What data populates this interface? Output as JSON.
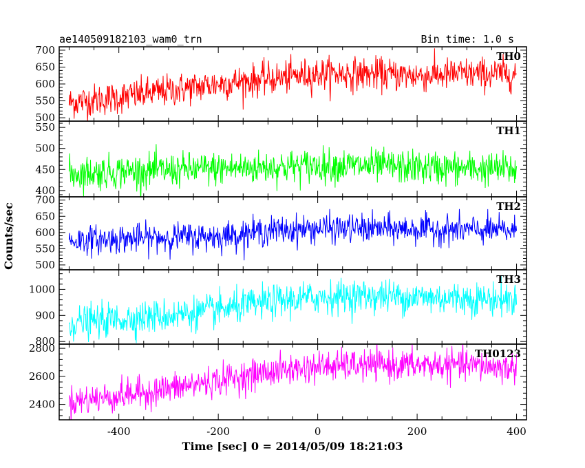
{
  "header": {
    "left": "ae140509182103_wam0_trn",
    "right": "Bin time: 1.0 s"
  },
  "colors": {
    "TH0": "#ff0000",
    "TH1": "#00ff00",
    "TH2": "#0000ff",
    "TH3": "#00ffff",
    "TH0123": "#ff00ff"
  },
  "chart_data": {
    "type": "line",
    "title": "ae140509182103_wam0_trn",
    "subtitle": "Bin time: 1.0 s",
    "xlabel": "Time [sec] 0 = 2014/05/09 18:21:03",
    "ylabel": "Counts/sec",
    "xlim": [
      -520,
      420
    ],
    "x_ticks": [
      -400,
      -200,
      0,
      200,
      400
    ],
    "x_range_data": [
      -500,
      400
    ],
    "bin_time_s": 1.0,
    "grid": false,
    "panels": [
      {
        "name": "TH0",
        "ylim": [
          490,
          710
        ],
        "y_ticks": [
          500,
          550,
          600,
          650,
          700
        ],
        "trend": {
          "x": [
            -500,
            -400,
            -300,
            -200,
            -100,
            0,
            100,
            200,
            300,
            400
          ],
          "y": [
            545,
            560,
            580,
            600,
            615,
            630,
            630,
            625,
            630,
            630
          ]
        },
        "noise_sd": 24
      },
      {
        "name": "TH1",
        "ylim": [
          385,
          565
        ],
        "y_ticks": [
          400,
          450,
          500,
          550
        ],
        "trend": {
          "x": [
            -500,
            -400,
            -300,
            -200,
            -100,
            0,
            100,
            200,
            300,
            400
          ],
          "y": [
            440,
            445,
            448,
            452,
            455,
            460,
            458,
            455,
            452,
            450
          ]
        },
        "noise_sd": 20
      },
      {
        "name": "TH2",
        "ylim": [
          485,
          710
        ],
        "y_ticks": [
          500,
          550,
          600,
          650,
          700
        ],
        "trend": {
          "x": [
            -500,
            -400,
            -300,
            -200,
            -100,
            0,
            100,
            200,
            300,
            400
          ],
          "y": [
            575,
            580,
            585,
            588,
            605,
            612,
            612,
            610,
            608,
            605
          ]
        },
        "noise_sd": 22
      },
      {
        "name": "TH3",
        "ylim": [
          790,
          1075
        ],
        "y_ticks": [
          800,
          900,
          1000
        ],
        "trend": {
          "x": [
            -500,
            -400,
            -300,
            -200,
            -100,
            0,
            100,
            200,
            300,
            400
          ],
          "y": [
            870,
            885,
            900,
            920,
            950,
            970,
            975,
            970,
            965,
            960
          ]
        },
        "noise_sd": 32
      },
      {
        "name": "TH0123",
        "ylim": [
          2290,
          2830
        ],
        "y_ticks": [
          2400,
          2600,
          2800
        ],
        "trend": {
          "x": [
            -500,
            -400,
            -300,
            -200,
            -100,
            0,
            100,
            200,
            300,
            400
          ],
          "y": [
            2420,
            2460,
            2510,
            2570,
            2630,
            2670,
            2680,
            2680,
            2680,
            2660
          ]
        },
        "noise_sd": 55
      }
    ]
  }
}
